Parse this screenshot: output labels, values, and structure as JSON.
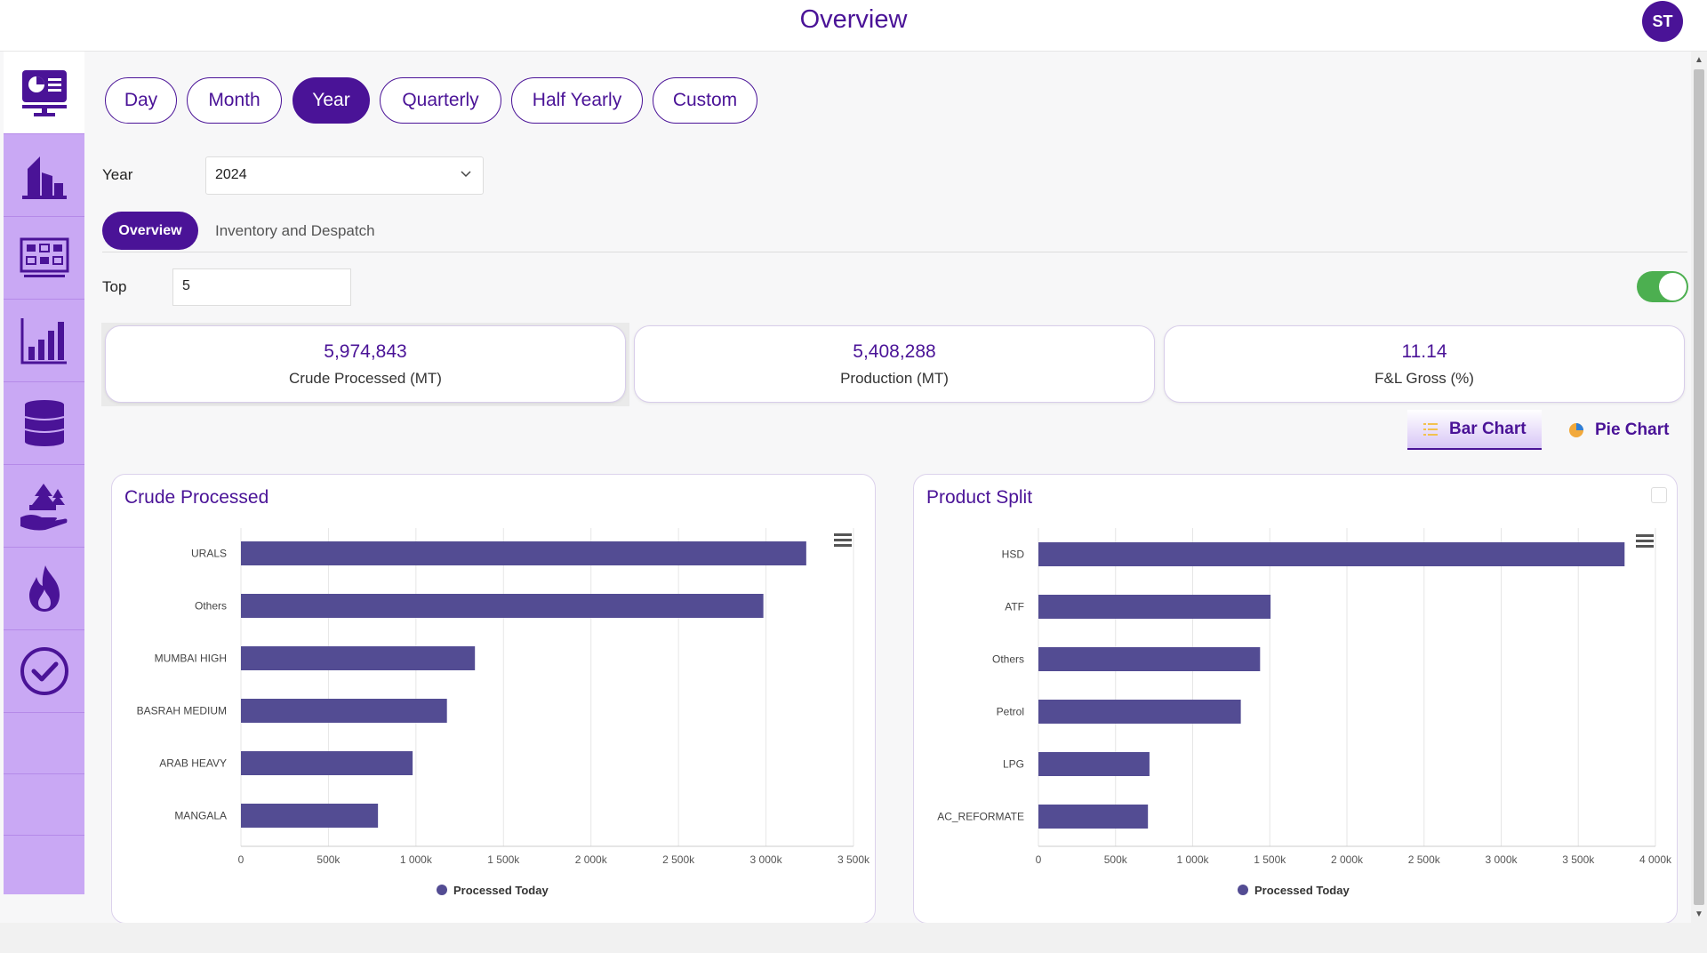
{
  "app": {
    "title": "Overview",
    "user_initials": "ST"
  },
  "sidebar": {
    "items": [
      {
        "icon": "dashboard-monitor-icon",
        "active": true
      },
      {
        "icon": "refinery-building-icon",
        "active": false
      },
      {
        "icon": "process-flow-icon",
        "active": false
      },
      {
        "icon": "bar-chart-icon",
        "active": false
      },
      {
        "icon": "oil-barrel-icon",
        "active": false
      },
      {
        "icon": "environment-hand-icon",
        "active": false
      },
      {
        "icon": "flame-icon",
        "active": false
      },
      {
        "icon": "check-circle-icon",
        "active": false
      }
    ]
  },
  "period_buttons": [
    {
      "label": "Day",
      "active": false
    },
    {
      "label": "Month",
      "active": false
    },
    {
      "label": "Year",
      "active": true
    },
    {
      "label": "Quarterly",
      "active": false
    },
    {
      "label": "Half Yearly",
      "active": false
    },
    {
      "label": "Custom",
      "active": false
    }
  ],
  "filters": {
    "year_label": "Year",
    "year_value": "2024",
    "top_label": "Top",
    "top_value": "5",
    "toggle_on": true
  },
  "tabs": {
    "active": "Overview",
    "other": "Inventory and Despatch"
  },
  "kpis": [
    {
      "value": "5,974,843",
      "caption": "Crude Processed (MT)"
    },
    {
      "value": "5,408,288",
      "caption": "Production (MT)"
    },
    {
      "value": "11.14",
      "caption": "F&L Gross (%)"
    }
  ],
  "view_toggle": {
    "bar_label": "Bar Chart",
    "pie_label": "Pie Chart",
    "active": "bar"
  },
  "colors": {
    "accent": "#4a1397",
    "bar": "#534c93",
    "sidebar": "#c9a8f4",
    "toggle": "#4caf50"
  },
  "chart_data": [
    {
      "type": "bar",
      "orientation": "horizontal",
      "title": "Crude Processed",
      "categories": [
        "URALS",
        "Others",
        "MUMBAI HIGH",
        "BASRAH MEDIUM",
        "ARAB HEAVY",
        "MANGALA"
      ],
      "series": [
        {
          "name": "Processed Today",
          "values": [
            3230000,
            2985000,
            1337000,
            1177000,
            981000,
            783000
          ]
        }
      ],
      "xlim": [
        0,
        3500000
      ],
      "xticks": [
        "0",
        "500k",
        "1 000k",
        "1 500k",
        "2 000k",
        "2 500k",
        "3 000k",
        "3 500k"
      ],
      "legend": "bottom",
      "grid": true
    },
    {
      "type": "bar",
      "orientation": "horizontal",
      "title": "Product Split",
      "categories": [
        "HSD",
        "ATF",
        "Others",
        "Petrol",
        "LPG",
        "AC_REFORMATE"
      ],
      "series": [
        {
          "name": "Processed Today",
          "values": [
            3800000,
            1505000,
            1437000,
            1312000,
            720000,
            710000
          ]
        }
      ],
      "xlim": [
        0,
        4000000
      ],
      "xticks": [
        "0",
        "500k",
        "1 000k",
        "1 500k",
        "2 000k",
        "2 500k",
        "3 000k",
        "3 500k",
        "4 000k"
      ],
      "legend": "bottom",
      "grid": true
    }
  ]
}
